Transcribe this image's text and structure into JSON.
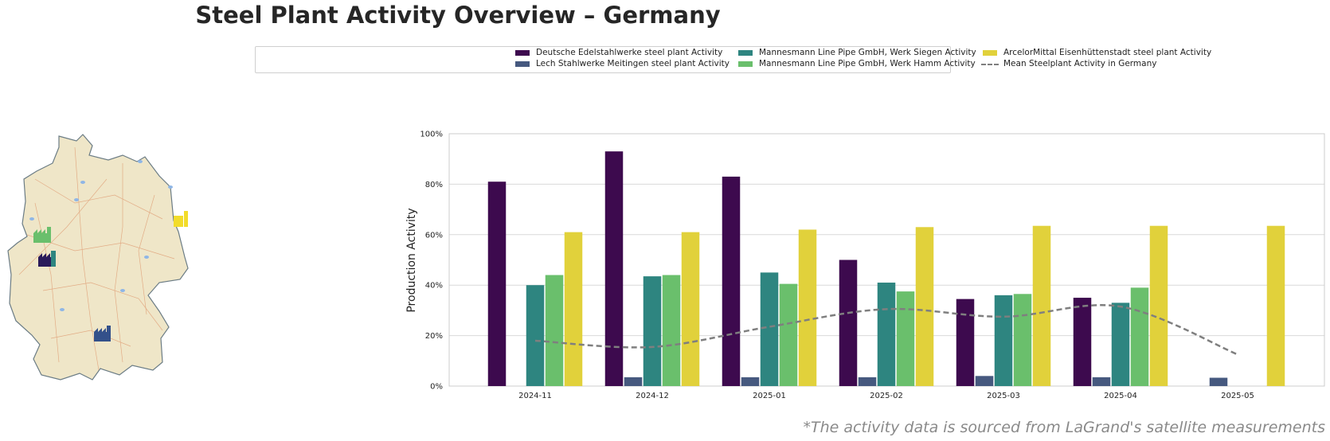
{
  "title": "Steel Plant Activity Overview – Germany",
  "footnote": "*The activity data is sourced from LaGrand's satellite measurements",
  "legend": [
    {
      "label": "Deutsche Edelstahlwerke steel plant Activity",
      "color": "#3d0a4e",
      "kind": "bar"
    },
    {
      "label": "Lech Stahlwerke Meitingen steel plant Activity",
      "color": "#46597f",
      "kind": "bar"
    },
    {
      "label": "Mannesmann Line Pipe GmbH, Werk Siegen Activity",
      "color": "#2e8580",
      "kind": "bar"
    },
    {
      "label": "Mannesmann Line Pipe GmbH, Werk Hamm Activity",
      "color": "#6abf6c",
      "kind": "bar"
    },
    {
      "label": "ArcelorMittal Eisenhüttenstadt steel plant Activity",
      "color": "#e1d13b",
      "kind": "bar"
    },
    {
      "label": "Mean Steelplant Activity in Germany",
      "color": "#7f7f7f",
      "kind": "line"
    }
  ],
  "map_icons": [
    {
      "name": "factory-icon-siegen-hamm",
      "color": "#6abf6c"
    },
    {
      "name": "factory-icon-edelstahl",
      "color": "#2e8580"
    },
    {
      "name": "factory-icon-meitingen",
      "color": "#46597f"
    },
    {
      "name": "factory-icon-eisenhuettenstadt",
      "color": "#e1d13b"
    }
  ],
  "chart_data": {
    "type": "bar",
    "ylabel": "Production Activity",
    "xlabel": "",
    "ylim": [
      0,
      100
    ],
    "yticks": [
      "0%",
      "20%",
      "40%",
      "60%",
      "80%",
      "100%"
    ],
    "grid": true,
    "categories": [
      "2024-11",
      "2024-12",
      "2025-01",
      "2025-02",
      "2025-03",
      "2025-04",
      "2025-05"
    ],
    "series": [
      {
        "name": "Deutsche Edelstahlwerke steel plant Activity",
        "color": "#3d0a4e",
        "values": [
          81,
          93,
          83,
          50,
          34.5,
          35,
          null
        ]
      },
      {
        "name": "Lech Stahlwerke Meitingen steel plant Activity",
        "color": "#46597f",
        "values": [
          null,
          3.5,
          3.5,
          3.5,
          4,
          3.5,
          3.3
        ]
      },
      {
        "name": "Mannesmann Line Pipe GmbH, Werk Siegen Activity",
        "color": "#2e8580",
        "values": [
          40,
          43.5,
          45,
          41,
          36,
          33,
          null
        ]
      },
      {
        "name": "Mannesmann Line Pipe GmbH, Werk Hamm Activity",
        "color": "#6abf6c",
        "values": [
          44,
          44,
          40.5,
          37.5,
          36.5,
          39,
          null
        ]
      },
      {
        "name": "ArcelorMittal Eisenhüttenstadt steel plant Activity",
        "color": "#e1d13b",
        "values": [
          61,
          61,
          62,
          63,
          63.5,
          63.5,
          63.5
        ]
      }
    ],
    "mean_line": {
      "name": "Mean Steelplant Activity in Germany",
      "color": "#7f7f7f",
      "values": [
        18,
        15.5,
        23.5,
        30.5,
        27.5,
        31.5,
        12.5
      ]
    }
  }
}
